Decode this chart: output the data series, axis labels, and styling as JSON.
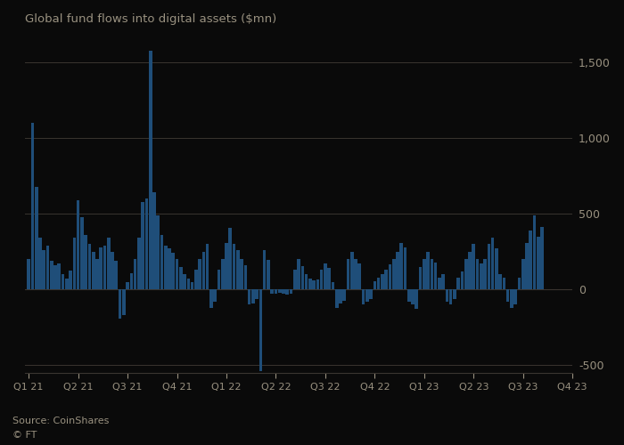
{
  "title": "Global fund flows into digital assets ($mn)",
  "source": "Source: CoinShares",
  "footer": "© FT",
  "bar_color": "#1f4e79",
  "background_color": "#0a0a0a",
  "text_color": "#999180",
  "grid_color": "#3a3530",
  "ylim": [
    -550,
    1700
  ],
  "yticks": [
    -500,
    0,
    500,
    1000,
    1500
  ],
  "quarter_starts": [
    0,
    13,
    26,
    39,
    52,
    65,
    78,
    91,
    104,
    117,
    130,
    143
  ],
  "quarter_labels": [
    "Q1 21",
    "Q2 21",
    "Q3 21",
    "Q4 21",
    "Q1 22",
    "Q2 22",
    "Q3 22",
    "Q4 22",
    "Q1 23",
    "Q2 23",
    "Q3 23",
    "Q4 23"
  ],
  "values": [
    200,
    1100,
    680,
    340,
    260,
    290,
    190,
    160,
    170,
    100,
    75,
    125,
    340,
    590,
    480,
    360,
    300,
    250,
    200,
    280,
    290,
    340,
    250,
    190,
    -190,
    -170,
    50,
    110,
    200,
    340,
    580,
    600,
    1580,
    640,
    490,
    360,
    290,
    270,
    240,
    200,
    150,
    100,
    75,
    50,
    130,
    200,
    250,
    300,
    -120,
    -80,
    130,
    200,
    310,
    410,
    300,
    260,
    200,
    160,
    -100,
    -90,
    -60,
    -540,
    260,
    195,
    -25,
    -25,
    -20,
    -25,
    -35,
    -25,
    130,
    200,
    155,
    100,
    75,
    60,
    65,
    130,
    175,
    145,
    50,
    -120,
    -95,
    -75,
    200,
    250,
    200,
    175,
    -100,
    -80,
    -60,
    55,
    80,
    100,
    130,
    165,
    200,
    250,
    305,
    280,
    -80,
    -100,
    -130,
    150,
    200,
    250,
    200,
    180,
    80,
    100,
    -80,
    -100,
    -60,
    80,
    120,
    200,
    250,
    300,
    200,
    175,
    200,
    300,
    345,
    275,
    100,
    80,
    -80,
    -120,
    -100,
    80,
    200,
    310,
    390,
    490,
    350,
    415
  ]
}
